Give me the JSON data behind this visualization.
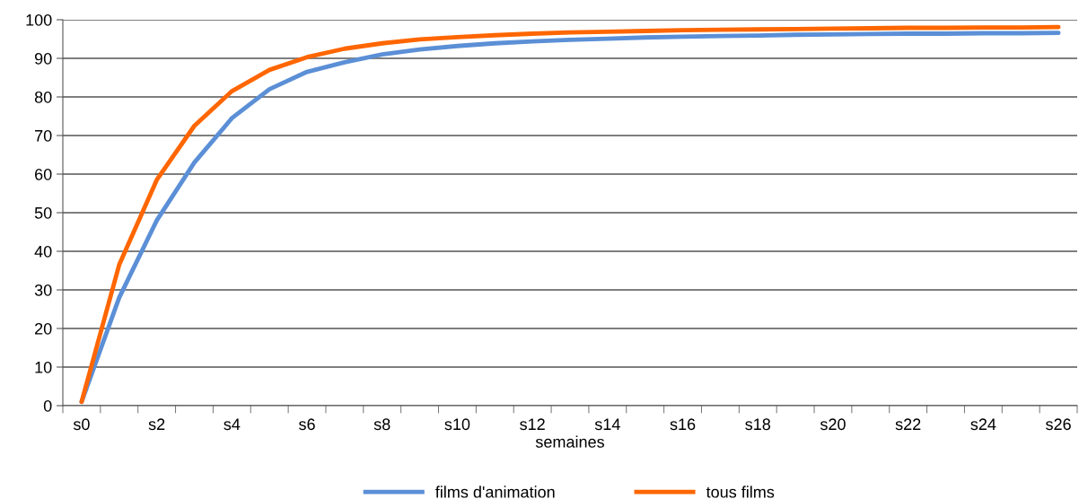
{
  "chart_data": {
    "type": "line",
    "xlabel": "semaines",
    "categories": [
      "s0",
      null,
      "s2",
      null,
      "s4",
      null,
      "s6",
      null,
      "s8",
      null,
      "s10",
      null,
      "s12",
      null,
      "s14",
      null,
      "s16",
      null,
      "s18",
      null,
      "s20",
      null,
      "s22",
      null,
      "s24",
      null,
      "s26"
    ],
    "series": [
      {
        "name": "films d'animation",
        "color": "#5b8fd6",
        "values": [
          1,
          28,
          48,
          63,
          74.5,
          82,
          86.5,
          89,
          91,
          92.3,
          93.2,
          93.9,
          94.4,
          94.8,
          95.1,
          95.4,
          95.6,
          95.8,
          95.9,
          96.1,
          96.2,
          96.3,
          96.4,
          96.4,
          96.5,
          96.5,
          96.6
        ]
      },
      {
        "name": "tous films",
        "color": "#ff6600",
        "values": [
          1,
          36.5,
          58.5,
          72.5,
          81.5,
          87,
          90.3,
          92.5,
          93.9,
          94.9,
          95.5,
          96,
          96.4,
          96.7,
          96.9,
          97.1,
          97.3,
          97.4,
          97.5,
          97.6,
          97.7,
          97.8,
          97.9,
          97.9,
          98,
          98,
          98.1
        ]
      }
    ],
    "ylim": [
      0,
      100
    ],
    "yticks": [
      0,
      10,
      20,
      30,
      40,
      50,
      60,
      70,
      80,
      90,
      100
    ],
    "grid": "y",
    "legend": "bottom",
    "marker": "none",
    "line_style": "solid"
  }
}
